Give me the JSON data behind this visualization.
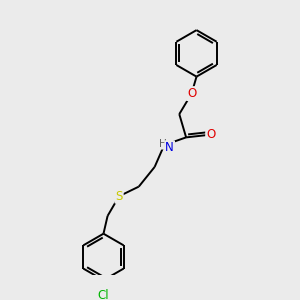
{
  "background_color": "#ebebeb",
  "bond_color": "#000000",
  "atom_colors": {
    "O": "#e00000",
    "N": "#0000e0",
    "S": "#c8c800",
    "Cl": "#00b400",
    "C": "#000000",
    "H": "#606060"
  },
  "figsize": [
    3.0,
    3.0
  ],
  "dpi": 100,
  "bond_lw": 1.4,
  "font_size": 8.5,
  "xlim": [
    0,
    10
  ],
  "ylim": [
    0,
    10
  ]
}
